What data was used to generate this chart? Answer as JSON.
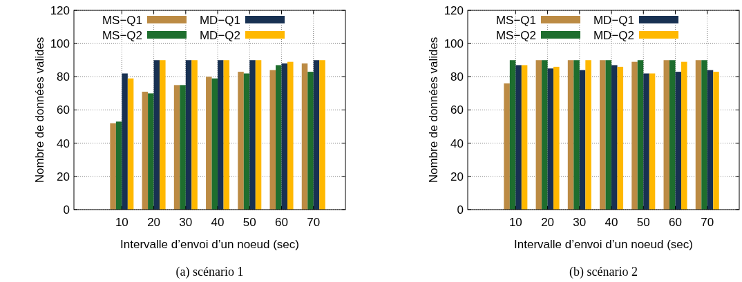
{
  "chart_data": [
    {
      "type": "bar",
      "xlabel": "Intervalle d’envoi d’un noeud (sec)",
      "ylabel": "Nombre de données valides",
      "categories": [
        "10",
        "20",
        "30",
        "40",
        "50",
        "60",
        "70"
      ],
      "series": [
        {
          "name": "MS−Q1",
          "color": "#bc8b44",
          "values": [
            52,
            71,
            75,
            80,
            83,
            84,
            88
          ]
        },
        {
          "name": "MS−Q2",
          "color": "#1e6e2e",
          "values": [
            53,
            70,
            75,
            79,
            82,
            87,
            83
          ]
        },
        {
          "name": "MD−Q1",
          "color": "#183152",
          "values": [
            82,
            90,
            90,
            90,
            90,
            88,
            90
          ]
        },
        {
          "name": "MD−Q2",
          "color": "#ffb800",
          "values": [
            79,
            90,
            90,
            90,
            90,
            89,
            90
          ]
        }
      ],
      "ylim": [
        0,
        120
      ],
      "yticks": [
        0,
        20,
        40,
        60,
        80,
        100,
        120
      ],
      "grid": true,
      "legend": "top",
      "annotations": [
        "(a) scénario 1"
      ]
    },
    {
      "type": "bar",
      "xlabel": "Intervalle d’envoi d’un noeud (sec)",
      "ylabel": "Nombre de données valides",
      "categories": [
        "10",
        "20",
        "30",
        "40",
        "50",
        "60",
        "70"
      ],
      "series": [
        {
          "name": "MS−Q1",
          "color": "#bc8b44",
          "values": [
            76,
            90,
            90,
            90,
            89,
            90,
            90
          ]
        },
        {
          "name": "MS−Q2",
          "color": "#1e6e2e",
          "values": [
            90,
            90,
            90,
            90,
            90,
            90,
            90
          ]
        },
        {
          "name": "MD−Q1",
          "color": "#183152",
          "values": [
            87,
            85,
            84,
            87,
            82,
            83,
            84
          ]
        },
        {
          "name": "MD−Q2",
          "color": "#ffb800",
          "values": [
            87,
            86,
            90,
            86,
            82,
            89,
            83
          ]
        }
      ],
      "ylim": [
        0,
        120
      ],
      "yticks": [
        0,
        20,
        40,
        60,
        80,
        100,
        120
      ],
      "grid": true,
      "legend": "top",
      "annotations": [
        "(b) scénario 2"
      ]
    }
  ]
}
